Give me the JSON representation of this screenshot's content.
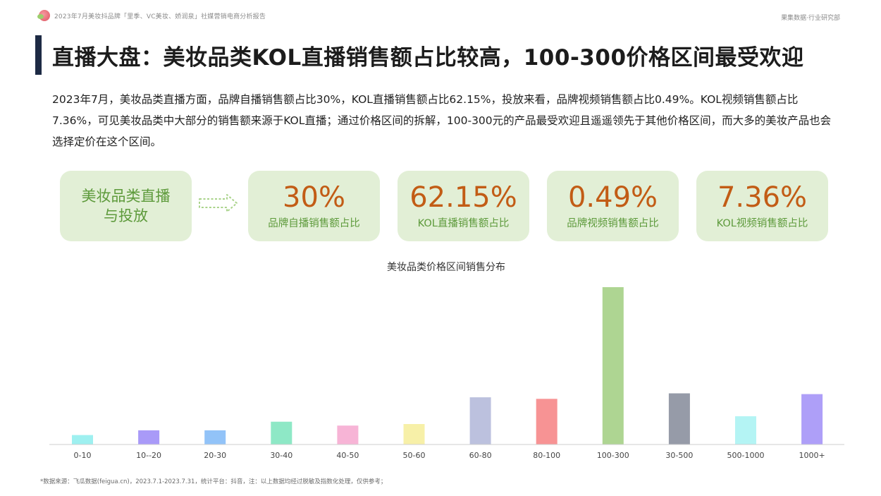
{
  "header": {
    "report_title": "2023年7月美妆抖品牌「里季、VC美妆、娇润泉」社媒营销电商分析报告",
    "brand_right": "果集数据·行业研究部"
  },
  "headline": "直播大盘：美妆品类KOL直播销售额占比较高，100-300价格区间最受欢迎",
  "summary": "2023年7月，美妆品类直播方面，品牌自播销售额占比30%，KOL直播销售额占比62.15%，投放来看，品牌视频销售额占比0.49%。KOL视频销售额占比7.36%，可见美妆品类中大部分的销售额来源于KOL直播；通过价格区间的拆解，100-300元的产品最受欢迎且遥遥领先于其他价格区间，而大多的美妆产品也会选择定价在这个区间。",
  "intro_card": {
    "line1": "美妆品类直播",
    "line2": "与投放"
  },
  "stats": [
    {
      "value": "30%",
      "label": "品牌自播销售额占比"
    },
    {
      "value": "62.15%",
      "label": "KOL直播销售额占比"
    },
    {
      "value": "0.49%",
      "label": "品牌视频销售额占比"
    },
    {
      "value": "7.36%",
      "label": "KOL视频销售额占比"
    }
  ],
  "colors": {
    "card_bg": "#e2efd6",
    "accent_orange": "#c25c15",
    "accent_green": "#5d9a3b",
    "headline_bar": "#1d2a44"
  },
  "chart_data": {
    "type": "bar",
    "title": "美妆品类价格区间销售分布",
    "categories": [
      "0-10",
      "10--20",
      "20-30",
      "30-40",
      "40-50",
      "50-60",
      "60-80",
      "80-100",
      "100-300",
      "30-500",
      "500-1000",
      "1000+"
    ],
    "values": [
      6,
      9,
      9,
      14.5,
      12,
      13,
      30,
      29,
      100,
      32.5,
      18,
      32
    ],
    "colors": [
      "#9ef0f0",
      "#a99af8",
      "#92c3f8",
      "#8ee8c6",
      "#f7b4d6",
      "#f7f0a8",
      "#bcc1de",
      "#f79394",
      "#aed592",
      "#969ba8",
      "#b4f4f4",
      "#ae9ff8"
    ],
    "ylim": [
      0,
      100
    ],
    "y_axis_labels": false,
    "grid": false,
    "legend": "none"
  },
  "footnote": "*数据来源：飞瓜数据(feigua.cn)，2023.7.1-2023.7.31，统计平台：抖音，注：以上数据均经过脱敏及指数化处理，仅供参考；"
}
